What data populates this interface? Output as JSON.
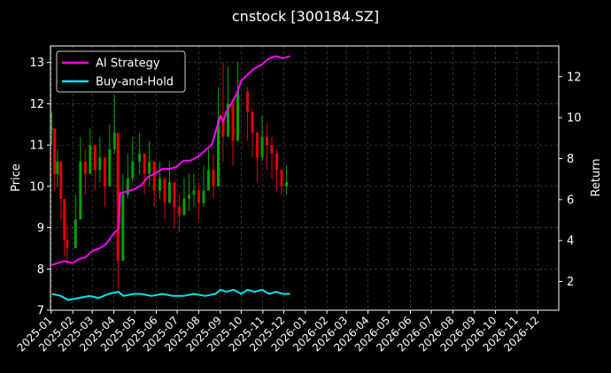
{
  "colors": {
    "background": "#000000",
    "grid": "#555555",
    "text": "#ffffff",
    "ai_strategy": "#ff00ff",
    "buy_and_hold": "#00e5ee",
    "candle_up": "#00a000",
    "candle_down": "#e00000"
  },
  "chart_data": {
    "type": "line",
    "title": "cnstock [300184.SZ]",
    "xlabel": "",
    "ylabel": "Price",
    "y2label": "Return",
    "x_ticks": [
      "2025-01",
      "2025-02",
      "2025-03",
      "2025-04",
      "2025-05",
      "2025-06",
      "2025-07",
      "2025-08",
      "2025-09",
      "2025-10",
      "2025-11",
      "2025-12",
      "2026-01",
      "2026-02",
      "2026-03",
      "2026-04",
      "2026-05",
      "2026-06",
      "2026-07",
      "2026-08",
      "2026-09",
      "2026-10",
      "2026-11",
      "2026-12"
    ],
    "xlim": [
      "2024-12-31",
      "2026-12-31"
    ],
    "ylim": [
      7,
      13.4
    ],
    "y_ticks": [
      7,
      8,
      9,
      10,
      11,
      12,
      13
    ],
    "y2lim": [
      0.6,
      13.5
    ],
    "y2_ticks": [
      2,
      4,
      6,
      8,
      10,
      12
    ],
    "grid": true,
    "legend_position": "top-left",
    "price_candles": {
      "type": "candlestick",
      "dates": [
        "2025-01-02",
        "2025-01-06",
        "2025-01-10",
        "2025-01-15",
        "2025-01-20",
        "2025-01-24",
        "2025-02-05",
        "2025-02-12",
        "2025-02-19",
        "2025-02-26",
        "2025-03-05",
        "2025-03-12",
        "2025-03-19",
        "2025-03-26",
        "2025-04-02",
        "2025-04-07",
        "2025-04-14",
        "2025-04-21",
        "2025-04-28",
        "2025-05-08",
        "2025-05-15",
        "2025-05-22",
        "2025-05-29",
        "2025-06-06",
        "2025-06-13",
        "2025-06-20",
        "2025-06-27",
        "2025-07-04",
        "2025-07-11",
        "2025-07-18",
        "2025-07-25",
        "2025-08-01",
        "2025-08-08",
        "2025-08-15",
        "2025-08-22",
        "2025-08-29",
        "2025-09-05",
        "2025-09-12",
        "2025-09-19",
        "2025-09-26",
        "2025-10-10",
        "2025-10-17",
        "2025-10-24",
        "2025-10-31",
        "2025-11-07",
        "2025-11-14",
        "2025-11-21",
        "2025-11-28",
        "2025-12-05"
      ],
      "close": [
        11.4,
        10.3,
        10.6,
        9.7,
        8.7,
        8.5,
        9.2,
        10.6,
        10.3,
        11.0,
        10.4,
        10.7,
        10.0,
        10.9,
        11.3,
        8.2,
        9.8,
        10.2,
        10.6,
        10.8,
        10.3,
        10.6,
        9.9,
        10.2,
        9.6,
        10.1,
        9.5,
        9.3,
        9.7,
        9.8,
        9.9,
        9.6,
        9.9,
        10.4,
        10.0,
        11.6,
        11.2,
        12.0,
        11.1,
        12.3,
        11.8,
        11.3,
        10.7,
        11.2,
        11.0,
        10.8,
        10.4,
        10.0,
        10.1
      ],
      "high": [
        11.8,
        10.8,
        10.9,
        10.1,
        9.3,
        9.1,
        9.8,
        11.2,
        10.9,
        11.4,
        11.0,
        11.2,
        10.7,
        11.5,
        12.2,
        9.1,
        10.3,
        10.8,
        11.2,
        11.3,
        10.8,
        11.1,
        10.5,
        10.6,
        10.1,
        10.6,
        10.1,
        9.8,
        10.2,
        10.3,
        10.3,
        10.1,
        10.5,
        10.9,
        10.8,
        12.4,
        13.0,
        12.9,
        12.0,
        13.0,
        12.4,
        11.9,
        11.3,
        11.7,
        11.5,
        11.2,
        10.9,
        10.4,
        10.5
      ],
      "low": [
        11.0,
        9.9,
        10.0,
        9.2,
        8.3,
        8.1,
        8.8,
        10.0,
        9.8,
        10.3,
        9.9,
        10.1,
        9.5,
        10.2,
        10.8,
        7.5,
        9.2,
        9.7,
        10.1,
        10.3,
        9.8,
        10.0,
        9.5,
        9.7,
        9.2,
        9.6,
        9.0,
        8.9,
        9.3,
        9.4,
        9.5,
        9.2,
        9.5,
        10.0,
        9.7,
        11.0,
        10.6,
        11.3,
        10.5,
        11.5,
        11.1,
        10.7,
        10.1,
        10.6,
        10.4,
        10.2,
        9.9,
        9.8,
        9.8
      ]
    },
    "series": [
      {
        "name": "AI Strategy",
        "axis": "right",
        "dates": [
          "2025-01-02",
          "2025-01-10",
          "2025-01-20",
          "2025-01-31",
          "2025-02-10",
          "2025-02-20",
          "2025-03-01",
          "2025-03-10",
          "2025-03-20",
          "2025-03-31",
          "2025-04-08",
          "2025-04-10",
          "2025-04-20",
          "2025-04-30",
          "2025-05-10",
          "2025-05-20",
          "2025-05-31",
          "2025-06-10",
          "2025-06-20",
          "2025-06-30",
          "2025-07-10",
          "2025-07-20",
          "2025-07-31",
          "2025-08-10",
          "2025-08-20",
          "2025-08-25",
          "2025-09-01",
          "2025-09-05",
          "2025-09-10",
          "2025-09-15",
          "2025-09-20",
          "2025-09-25",
          "2025-10-01",
          "2025-10-10",
          "2025-10-20",
          "2025-10-31",
          "2025-11-10",
          "2025-11-20",
          "2025-11-30",
          "2025-12-10"
        ],
        "values": [
          2.8,
          2.9,
          3.0,
          2.9,
          3.1,
          3.2,
          3.5,
          3.6,
          3.8,
          4.3,
          4.6,
          6.3,
          6.4,
          6.5,
          6.7,
          7.1,
          7.3,
          7.5,
          7.5,
          7.6,
          7.9,
          7.9,
          8.1,
          8.4,
          8.7,
          9.3,
          10.1,
          9.8,
          10.3,
          10.6,
          10.9,
          11.2,
          11.8,
          12.1,
          12.4,
          12.6,
          12.9,
          13.0,
          12.9,
          13.0
        ]
      },
      {
        "name": "Buy-and-Hold",
        "axis": "right",
        "dates": [
          "2025-01-02",
          "2025-01-15",
          "2025-01-25",
          "2025-02-10",
          "2025-02-25",
          "2025-03-10",
          "2025-03-25",
          "2025-04-07",
          "2025-04-15",
          "2025-04-30",
          "2025-05-10",
          "2025-05-25",
          "2025-06-10",
          "2025-06-25",
          "2025-07-10",
          "2025-07-25",
          "2025-08-10",
          "2025-08-25",
          "2025-09-01",
          "2025-09-10",
          "2025-09-20",
          "2025-10-01",
          "2025-10-10",
          "2025-10-20",
          "2025-10-31",
          "2025-11-10",
          "2025-11-20",
          "2025-11-30",
          "2025-12-10"
        ],
        "values": [
          1.4,
          1.3,
          1.1,
          1.2,
          1.3,
          1.2,
          1.4,
          1.5,
          1.3,
          1.4,
          1.4,
          1.3,
          1.4,
          1.3,
          1.3,
          1.4,
          1.3,
          1.4,
          1.6,
          1.5,
          1.6,
          1.4,
          1.6,
          1.5,
          1.6,
          1.4,
          1.5,
          1.4,
          1.4
        ]
      }
    ]
  }
}
